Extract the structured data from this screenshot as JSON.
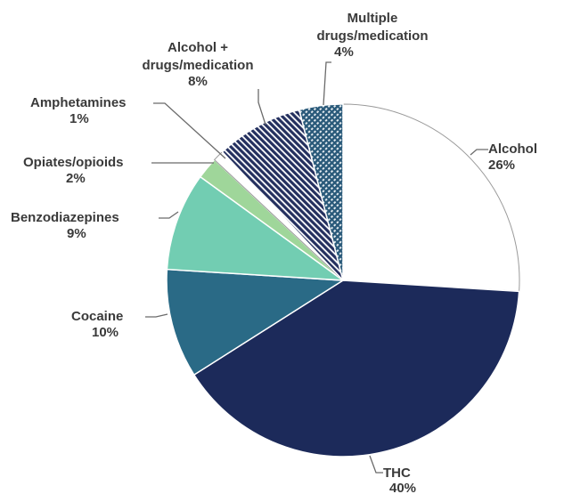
{
  "chart_data": {
    "type": "pie",
    "title": "",
    "slices": [
      {
        "label": "Alcohol",
        "value": 26,
        "value_label": "26%",
        "color": "#ffffff",
        "pattern": "none"
      },
      {
        "label": "THC",
        "value": 40,
        "value_label": "40%",
        "color": "#1c2a5a",
        "pattern": "none"
      },
      {
        "label": "Cocaine",
        "value": 10,
        "value_label": "10%",
        "color": "#2a6a86",
        "pattern": "none"
      },
      {
        "label": "Benzodiazepines",
        "value": 9,
        "value_label": "9%",
        "color": "#72cdb2",
        "pattern": "none"
      },
      {
        "label": "Opiates/opioids",
        "value": 2,
        "value_label": "2%",
        "color": "#9fd69a",
        "pattern": "none"
      },
      {
        "label": "Amphetamines",
        "value": 1,
        "value_label": "1%",
        "color": "#ffffff",
        "pattern": "none"
      },
      {
        "label": "Alcohol + drugs/medication",
        "value": 8,
        "value_label": "8%",
        "color": "#24305f",
        "pattern": "diagonal-stripes"
      },
      {
        "label": "Multiple drugs/medication",
        "value": 4,
        "value_label": "4%",
        "color": "#2a5a7a",
        "pattern": "crosshatch"
      }
    ]
  }
}
